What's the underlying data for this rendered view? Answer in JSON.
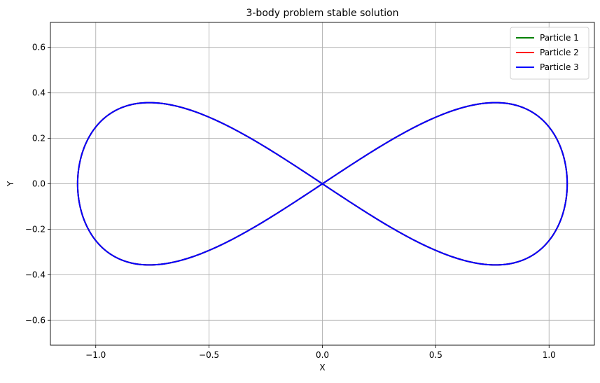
{
  "chart_data": {
    "type": "line",
    "title": "3-body problem stable solution",
    "xlabel": "X",
    "ylabel": "Y",
    "xlim": [
      -1.2,
      1.2
    ],
    "ylim": [
      -0.71,
      0.71
    ],
    "xticks": [
      -1.0,
      -0.5,
      0.0,
      0.5,
      1.0
    ],
    "xtick_labels": [
      "−1.0",
      "−0.5",
      "0.0",
      "0.5",
      "1.0"
    ],
    "yticks": [
      -0.6,
      -0.4,
      -0.2,
      0.0,
      0.2,
      0.4,
      0.6
    ],
    "ytick_labels": [
      "−0.6",
      "−0.4",
      "−0.2",
      "0.0",
      "0.2",
      "0.4",
      "0.6"
    ],
    "grid": true,
    "legend": {
      "position": "top-right"
    },
    "curve": {
      "shape": "figure-eight",
      "x_amplitude": 1.08,
      "y_amplitude": 0.357
    },
    "series": [
      {
        "name": "Particle 1",
        "color": "#008000"
      },
      {
        "name": "Particle 2",
        "color": "#ff0000"
      },
      {
        "name": "Particle 3",
        "color": "#0000ff"
      }
    ]
  }
}
